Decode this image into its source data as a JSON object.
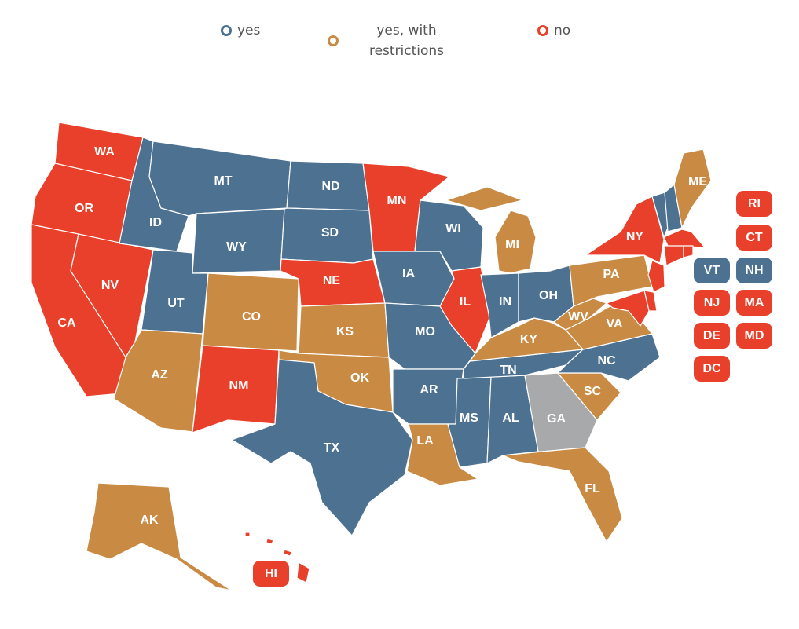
{
  "groups": [
    {
      "label": "yes",
      "color": "#4d7190",
      "states": [
        "MT",
        "ND",
        "ID",
        "WY",
        "SD",
        "UT",
        "IA",
        "WI",
        "MO",
        "IN",
        "OH",
        "AR",
        "TX",
        "MS",
        "AL",
        "TN",
        "NC",
        "VT",
        "NH"
      ]
    },
    {
      "label": "yes, with restrictions",
      "color": "#c98b43",
      "states": [
        "ME",
        "MI",
        "PA",
        "CO",
        "KS",
        "WV",
        "KY",
        "VA",
        "AZ",
        "OK",
        "LA",
        "SC",
        "FL",
        "AK"
      ]
    },
    {
      "label": "no",
      "color": "#e8402a",
      "states": [
        "WA",
        "OR",
        "CA",
        "NV",
        "MN",
        "NE",
        "IL",
        "NM",
        "NY",
        "RI",
        "CT",
        "NJ",
        "MA",
        "DE",
        "MD",
        "DC",
        "HI"
      ]
    },
    {
      "color": "#a8a9ab",
      "states": [
        "GA"
      ]
    }
  ]
}
